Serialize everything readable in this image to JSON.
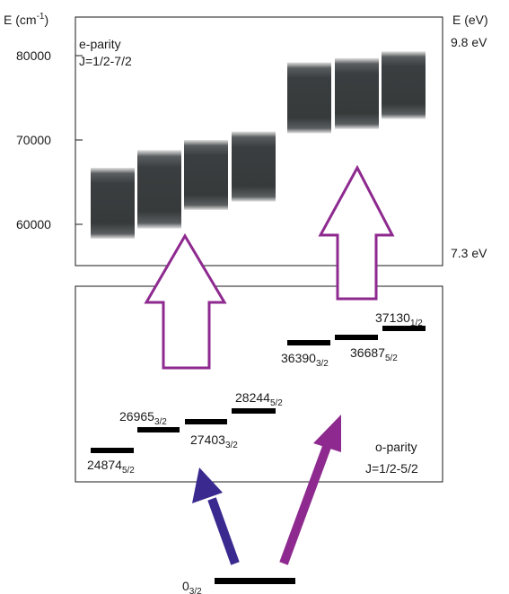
{
  "axes": {
    "left_unit_base": "E (cm",
    "left_unit_sup": "-1",
    "left_unit_close": ")",
    "right_unit": "E (eV)",
    "right_top_value": "9.8 eV",
    "right_bottom_value": "7.3 eV",
    "ticks": [
      {
        "value": 80000,
        "label": "80000"
      },
      {
        "value": 70000,
        "label": "70000"
      },
      {
        "value": 60000,
        "label": "60000"
      }
    ]
  },
  "upper_panel": {
    "label_line1": "e-parity",
    "label_line2": "J=1/2-7/2",
    "bands": [
      {
        "min": 58300,
        "max": 66700
      },
      {
        "min": 59500,
        "max": 68800
      },
      {
        "min": 61700,
        "max": 70000
      },
      {
        "min": 62700,
        "max": 71000
      },
      {
        "min": 70800,
        "max": 79200
      },
      {
        "min": 71300,
        "max": 79700
      },
      {
        "min": 72500,
        "max": 80500
      }
    ]
  },
  "lower_panel": {
    "label_line1": "o-parity",
    "label_line2": "J=1/2-5/2",
    "levels": [
      {
        "energy": "24874",
        "j": "5/2"
      },
      {
        "energy": "26965",
        "j": "3/2"
      },
      {
        "energy": "27403",
        "j": "3/2"
      },
      {
        "energy": "28244",
        "j": "5/2"
      },
      {
        "energy": "36390",
        "j": "3/2"
      },
      {
        "energy": "36687",
        "j": "5/2"
      },
      {
        "energy": "37130",
        "j": "1/2"
      }
    ]
  },
  "ground": {
    "energy": "0",
    "j": "3/2"
  },
  "colors": {
    "band_dark": "#353839",
    "band_light": "#d9d9d9",
    "arrow_purple": "#8e2a8f",
    "arrow_blue": "#3a2a8f",
    "level_black": "#000000",
    "frame": "#1a1a1a"
  }
}
